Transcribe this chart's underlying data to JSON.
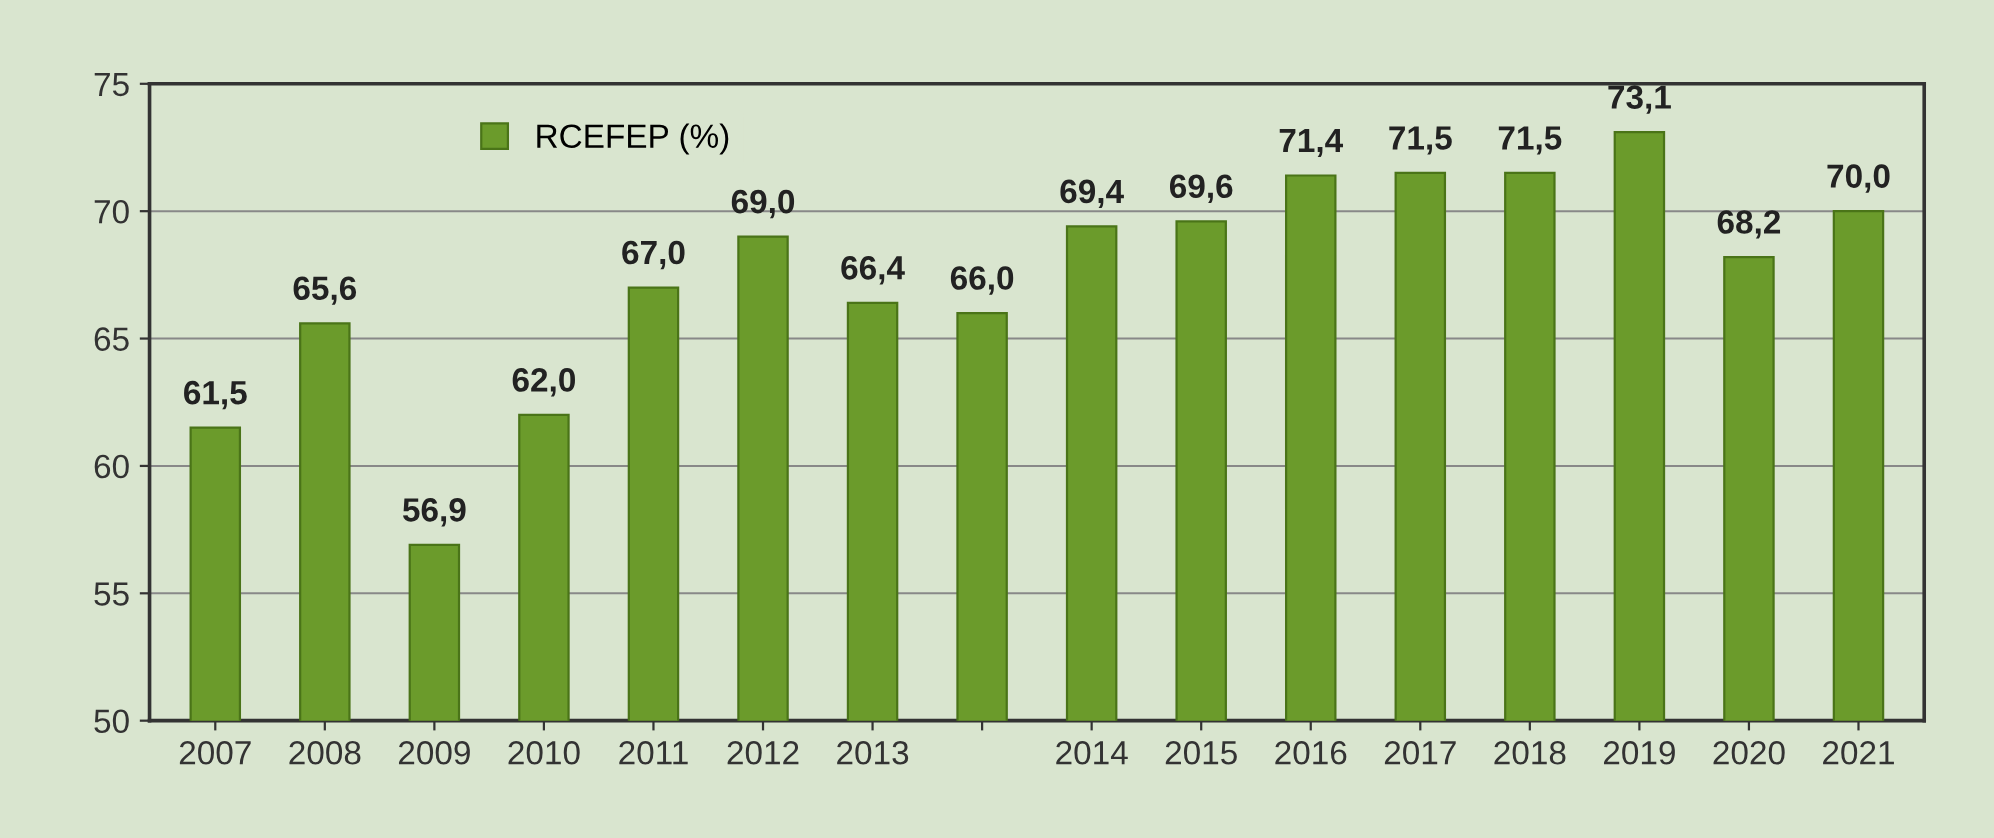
{
  "chart_data": {
    "type": "bar",
    "categories": [
      "2007",
      "2008",
      "2009",
      "2010",
      "2011",
      "2012",
      "2013",
      null,
      "2014",
      "2015",
      "2016",
      "2017",
      "2018",
      "2019",
      "2020",
      "2021"
    ],
    "series": [
      {
        "name": "RCEFEP (%)",
        "color": "#6b9b2b",
        "values": [
          61.5,
          65.6,
          56.9,
          62.0,
          67.0,
          69.0,
          66.4,
          66.0,
          69.4,
          69.6,
          71.4,
          71.5,
          71.5,
          73.1,
          68.2,
          70.0
        ]
      }
    ],
    "value_labels": [
      "61,5",
      "65,6",
      "56,9",
      "62,0",
      "67,0",
      "69,0",
      "66,4",
      "66,0",
      "69,4",
      "69,6",
      "71,4",
      "71,5",
      "71,5",
      "73,1",
      "68,2",
      "70,0"
    ],
    "ylim": [
      50,
      75
    ],
    "yticks": [
      50,
      55,
      60,
      65,
      70,
      75
    ],
    "grid": "y",
    "legend": "top left"
  }
}
